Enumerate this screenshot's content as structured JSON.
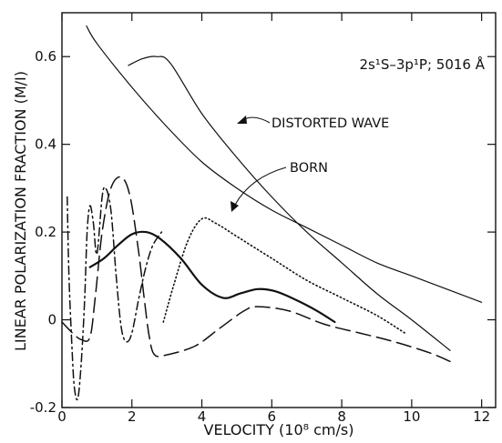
{
  "chart_data": {
    "type": "line",
    "xlabel": "VELOCITY (10⁸ cm/s)",
    "ylabel": "LINEAR POLARIZATION FRACTION (M/I)",
    "xlim": [
      0,
      12.4
    ],
    "ylim": [
      -0.2,
      0.7
    ],
    "x_ticks": [
      0,
      2,
      4,
      6,
      8,
      10,
      12
    ],
    "x_tick_labels": [
      "0",
      "2",
      "4",
      "6",
      "8",
      "10",
      "12"
    ],
    "y_ticks": [
      -0.2,
      0,
      0.2,
      0.4,
      0.6
    ],
    "y_tick_labels": [
      "-0.2",
      "0",
      "0.2",
      "0.4",
      "0.6"
    ],
    "grid": false,
    "annotations": {
      "transition": "2s¹S–3p¹P; 5016 Å",
      "distorted_wave": "DISTORTED WAVE",
      "born": "BORN"
    },
    "series": [
      {
        "name": "DISTORTED WAVE",
        "style": "solid-thin",
        "x": [
          1.9,
          2.3,
          2.7,
          3.1,
          4,
          5,
          6,
          7,
          8,
          9,
          10,
          11.1
        ],
        "y": [
          0.58,
          0.595,
          0.6,
          0.585,
          0.47,
          0.37,
          0.28,
          0.2,
          0.13,
          0.06,
          0,
          -0.07
        ]
      },
      {
        "name": "BORN",
        "style": "solid-thin",
        "x": [
          0.7,
          1,
          2,
          3,
          4,
          5,
          6,
          7,
          8,
          9,
          10,
          11,
          12
        ],
        "y": [
          0.67,
          0.63,
          0.53,
          0.44,
          0.36,
          0.3,
          0.25,
          0.21,
          0.17,
          0.13,
          0.1,
          0.07,
          0.04
        ]
      },
      {
        "style": "solid-thick",
        "x": [
          0.8,
          1.2,
          1.6,
          2,
          2.4,
          2.8,
          3.4,
          4,
          4.6,
          5.1,
          5.6,
          6.1,
          6.7,
          7.3,
          7.8
        ],
        "y": [
          0.12,
          0.14,
          0.17,
          0.195,
          0.2,
          0.185,
          0.14,
          0.08,
          0.05,
          0.06,
          0.07,
          0.065,
          0.045,
          0.02,
          -0.005
        ]
      },
      {
        "style": "dotted",
        "x": [
          2.9,
          3.2,
          3.6,
          4,
          4.4,
          5,
          6,
          7,
          8,
          9,
          9.8
        ],
        "y": [
          -0.005,
          0.08,
          0.18,
          0.23,
          0.22,
          0.19,
          0.14,
          0.09,
          0.05,
          0.01,
          -0.03
        ]
      },
      {
        "style": "long-dash",
        "x": [
          0,
          0.3,
          0.55,
          0.8,
          0.95,
          1.15,
          1.4,
          1.7,
          1.95,
          2.2,
          2.35,
          2.5,
          2.65,
          3,
          3.8,
          4.5,
          5.2,
          5.6,
          6.5,
          7.5,
          8.5,
          9.5,
          10.5,
          11.1
        ],
        "y": [
          -0.005,
          -0.03,
          -0.045,
          -0.04,
          0.05,
          0.2,
          0.3,
          0.325,
          0.28,
          0.15,
          0.05,
          -0.04,
          -0.08,
          -0.08,
          -0.06,
          -0.02,
          0.02,
          0.03,
          0.02,
          -0.01,
          -0.03,
          -0.05,
          -0.075,
          -0.095
        ]
      },
      {
        "style": "dash-dot",
        "x": [
          0.15,
          0.2,
          0.28,
          0.35,
          0.45,
          0.55,
          0.65,
          0.72,
          0.8,
          0.9,
          1,
          1.15,
          1.25,
          1.4,
          1.55,
          1.7,
          1.85,
          2,
          2.2,
          2.4,
          2.6,
          2.85
        ],
        "y": [
          0.28,
          0.1,
          -0.05,
          -0.15,
          -0.18,
          -0.1,
          0.05,
          0.2,
          0.26,
          0.22,
          0.15,
          0.28,
          0.3,
          0.25,
          0.1,
          -0.02,
          -0.05,
          -0.03,
          0.05,
          0.12,
          0.17,
          0.2
        ]
      }
    ]
  }
}
